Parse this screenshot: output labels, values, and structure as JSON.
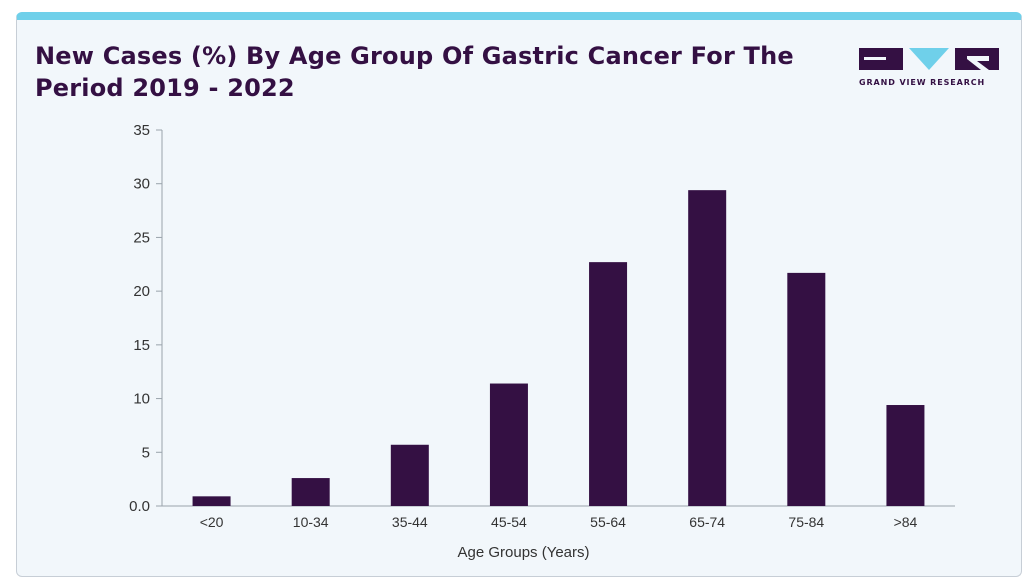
{
  "chart_data": {
    "type": "bar",
    "title": "New Cases (%) By Age Group Of Gastric Cancer For The Period 2019 - 2022",
    "xlabel": "Age Groups (Years)",
    "ylabel": "",
    "categories": [
      "<20",
      "10-34",
      "35-44",
      "45-54",
      "55-64",
      "65-74",
      "75-84",
      ">84"
    ],
    "values": [
      0.9,
      2.6,
      5.7,
      11.4,
      22.7,
      29.4,
      21.7,
      9.4
    ],
    "ylim": [
      0,
      35
    ],
    "yticks": [
      0,
      5,
      10,
      15,
      20,
      25,
      30,
      35
    ],
    "ytick_labels": [
      "0.0",
      "5",
      "10",
      "15",
      "20",
      "25",
      "30",
      "35"
    ],
    "bar_color": "#341043",
    "grid": false,
    "legend": "none"
  },
  "header": {
    "title": "New Cases (%) By Age Group Of Gastric Cancer For The Period 2019 - 2022",
    "logo_text": "GRAND VIEW RESEARCH",
    "accent_color": "#6fd0ea",
    "brand_color": "#341043"
  }
}
